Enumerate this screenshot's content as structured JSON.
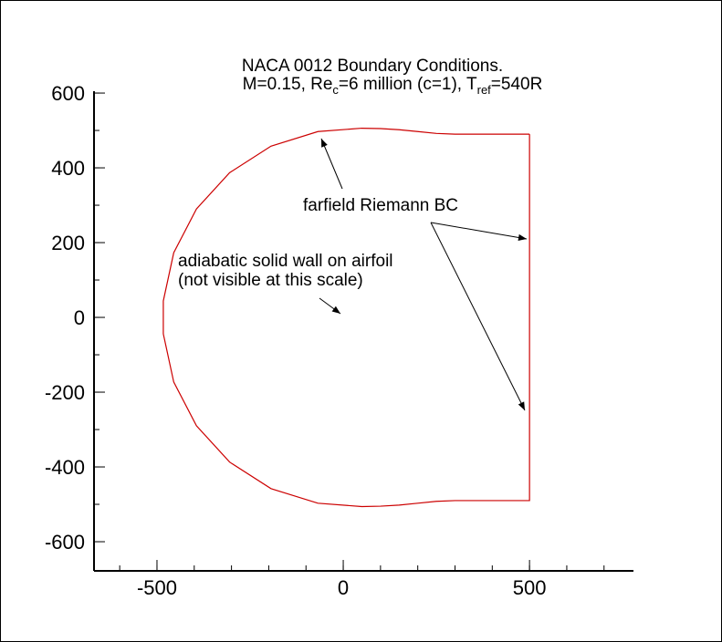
{
  "chart_data": {
    "type": "line",
    "title": "NACA 0012 Boundary Conditions.",
    "subtitle_parts": [
      "M=0.15, Re",
      "c",
      "=6 million (c=1), T",
      "ref",
      "=540R"
    ],
    "annotations": [
      "farfield Riemann BC",
      "adiabatic solid wall on airfoil",
      "(not visible at this scale)"
    ],
    "x": [
      500,
      400,
      300,
      250,
      200,
      150,
      100,
      50,
      -68,
      -194,
      -305,
      -394,
      -455,
      -483,
      -483,
      -455,
      -394,
      -305,
      -194,
      -68,
      50,
      100,
      150,
      200,
      250,
      300,
      400,
      500,
      500
    ],
    "series": [
      {
        "color": "#cc0000",
        "values": [
          490,
          490,
          490,
          492,
          497,
          502,
          505,
          506,
          497,
          458,
          387,
          290,
          173,
          44,
          -44,
          -173,
          -290,
          -387,
          -458,
          -497,
          -506,
          -505,
          -502,
          -497,
          -492,
          -490,
          -490,
          -490,
          490
        ]
      }
    ],
    "xlim": [
      -669,
      779
    ],
    "ylim": [
      -678,
      605
    ],
    "xticks": [
      -500,
      0,
      500
    ],
    "yticks": [
      600,
      400,
      200,
      0,
      -200,
      -400,
      -600
    ],
    "minor_tick_step": 100
  }
}
